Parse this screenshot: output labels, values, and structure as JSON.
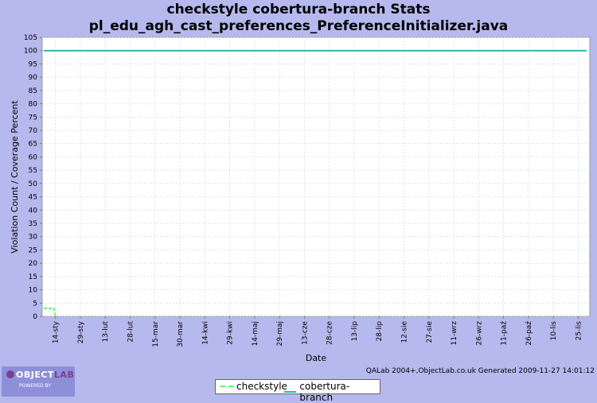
{
  "title_line1": "checkstyle cobertura-branch  Stats",
  "title_line2": "pl_edu_agh_cast_preferences_PreferenceInitializer.java",
  "footer_text": "QALab 2004+,ObjectLab.co.uk Generated 2009-11-27 14:01:12",
  "logo": {
    "text_a": "OBJECT",
    "text_b": "LAB",
    "sub": "POWERED BY"
  },
  "chart_data": {
    "type": "line",
    "xlabel": "Date",
    "ylabel": "Violation Count / Coverage Percent",
    "ylim": [
      0,
      105
    ],
    "yticks": [
      0,
      5,
      10,
      15,
      20,
      25,
      30,
      35,
      40,
      45,
      50,
      55,
      60,
      65,
      70,
      75,
      80,
      85,
      90,
      95,
      100,
      105
    ],
    "categories": [
      "14-sty",
      "29-sty",
      "13-lut",
      "28-lut",
      "15-mar",
      "30-mar",
      "14-kwi",
      "29-kwi",
      "14-maj",
      "29-maj",
      "13-cze",
      "28-cze",
      "13-lip",
      "28-lip",
      "12-sie",
      "27-sie",
      "11-wrz",
      "26-wrz",
      "11-paź",
      "26-paź",
      "10-lis",
      "25-lis"
    ],
    "grid": true,
    "legend_position": "bottom",
    "series": [
      {
        "name": "checkstyle",
        "color": "#55ff55",
        "dash": true,
        "points": [
          [
            "07-sty",
            3
          ],
          [
            "10-sty",
            3
          ],
          [
            "13-sty",
            3
          ],
          [
            "14-sty",
            0
          ]
        ]
      },
      {
        "name": "cobertura-branch",
        "color": "#1fb8b8",
        "dash": false,
        "points": [
          [
            "07-sty",
            100
          ],
          [
            "25-lis",
            100
          ],
          [
            "30-lis",
            100
          ]
        ]
      }
    ]
  }
}
